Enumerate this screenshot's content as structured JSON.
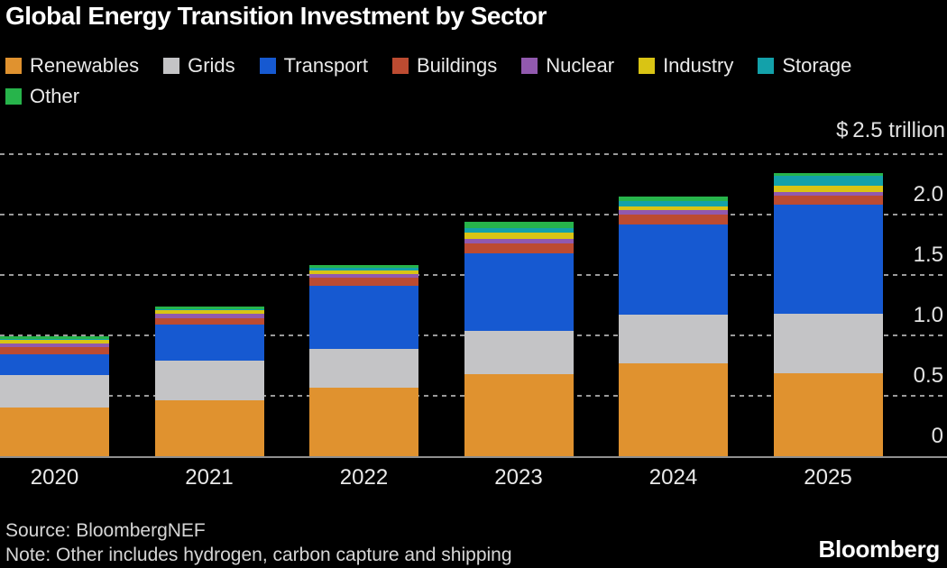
{
  "title": "Global Energy Transition Investment by Sector",
  "legend": {
    "items": [
      {
        "label": "Renewables",
        "color": "#E0922F"
      },
      {
        "label": "Grids",
        "color": "#C4C4C6"
      },
      {
        "label": "Transport",
        "color": "#1659D1"
      },
      {
        "label": "Buildings",
        "color": "#BC4B31"
      },
      {
        "label": "Nuclear",
        "color": "#9159AE"
      },
      {
        "label": "Industry",
        "color": "#D9C414"
      },
      {
        "label": "Storage",
        "color": "#13A1AA"
      },
      {
        "label": "Other",
        "color": "#27B44B"
      }
    ]
  },
  "axis": {
    "header": "$ 2.5 trillion",
    "ticks": [
      {
        "label": "2.0",
        "value": 2.0
      },
      {
        "label": "1.5",
        "value": 1.5
      },
      {
        "label": "1.0",
        "value": 1.0
      },
      {
        "label": "0.5",
        "value": 0.5
      },
      {
        "label": "0",
        "value": 0.0
      }
    ]
  },
  "chart_data": {
    "type": "bar",
    "stacked": true,
    "title": "Global Energy Transition Investment by Sector",
    "unit": "USD trillion",
    "ylim": [
      0,
      2.5
    ],
    "gridline_values": [
      0.5,
      1.0,
      1.5,
      2.0,
      2.5
    ],
    "legend_position": "top",
    "categories": [
      "2020",
      "2021",
      "2022",
      "2023",
      "2024",
      "2025"
    ],
    "series": [
      {
        "name": "Renewables",
        "color": "#E0922F",
        "values": [
          0.4,
          0.46,
          0.57,
          0.68,
          0.77,
          0.69
        ]
      },
      {
        "name": "Grids",
        "color": "#C4C4C6",
        "values": [
          0.27,
          0.33,
          0.32,
          0.36,
          0.4,
          0.49
        ]
      },
      {
        "name": "Transport",
        "color": "#1659D1",
        "values": [
          0.17,
          0.3,
          0.52,
          0.64,
          0.75,
          0.9
        ]
      },
      {
        "name": "Buildings",
        "color": "#BC4B31",
        "values": [
          0.06,
          0.05,
          0.07,
          0.08,
          0.08,
          0.08
        ]
      },
      {
        "name": "Nuclear",
        "color": "#9159AE",
        "values": [
          0.03,
          0.04,
          0.03,
          0.04,
          0.04,
          0.03
        ]
      },
      {
        "name": "Industry",
        "color": "#D9C414",
        "values": [
          0.03,
          0.03,
          0.03,
          0.05,
          0.03,
          0.05
        ]
      },
      {
        "name": "Storage",
        "color": "#13A1AA",
        "values": [
          0.01,
          0.01,
          0.02,
          0.04,
          0.04,
          0.08
        ]
      },
      {
        "name": "Other",
        "color": "#27B44B",
        "values": [
          0.02,
          0.02,
          0.02,
          0.05,
          0.04,
          0.02
        ]
      }
    ],
    "totals": [
      0.99,
      1.24,
      1.58,
      1.94,
      2.15,
      2.34
    ]
  },
  "footer": {
    "source": "Source: BloombergNEF",
    "note": "Note: Other includes hydrogen, carbon capture and shipping",
    "logo": "Bloomberg"
  }
}
